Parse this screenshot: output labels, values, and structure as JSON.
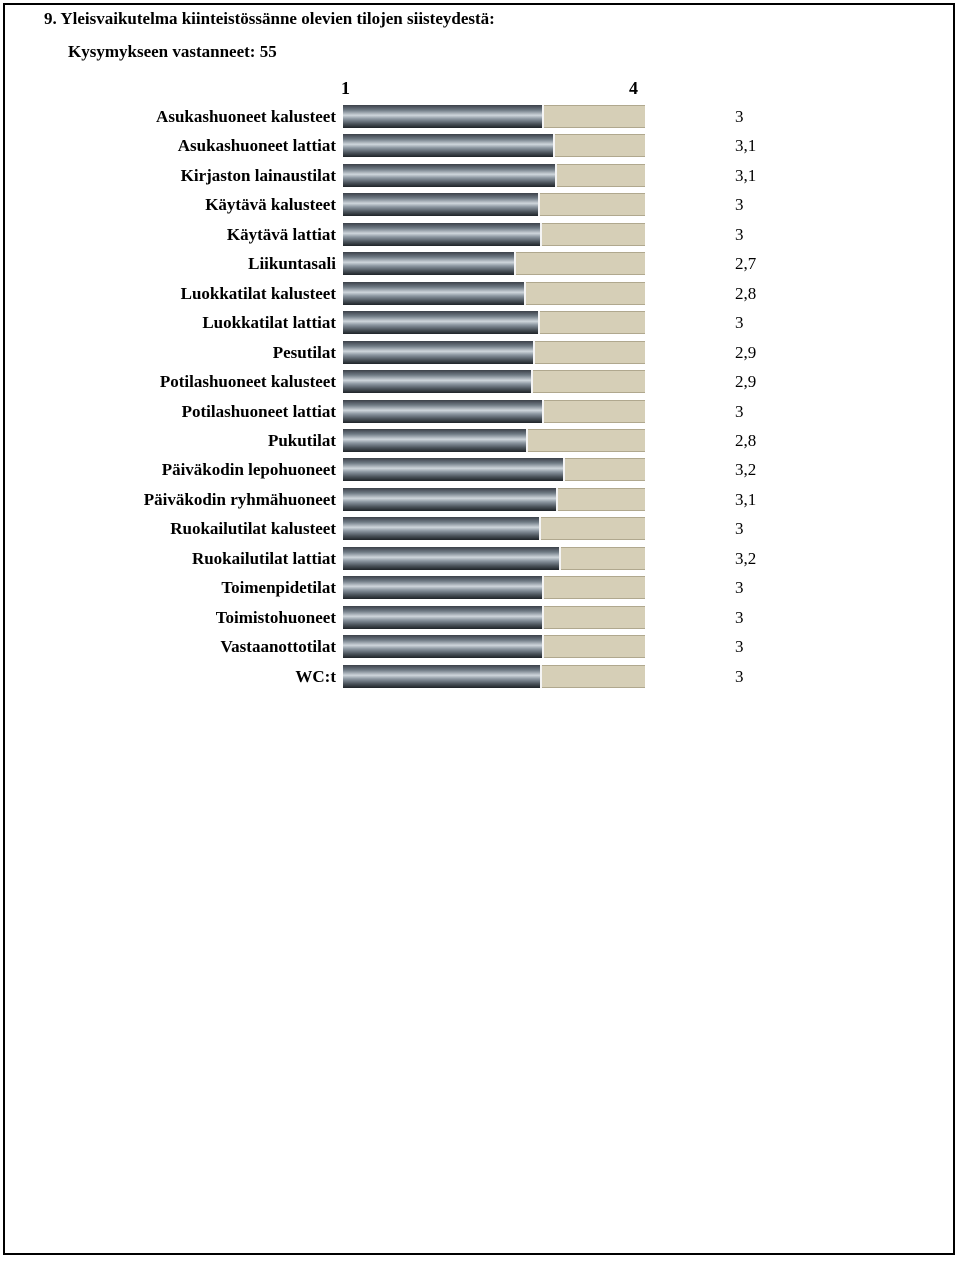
{
  "title": "9. Yleisvaikutelma kiinteistössänne olevien tilojen siisteydestä:",
  "subtitle": "Kysymykseen vastanneet: 55",
  "chart_data": {
    "type": "bar",
    "orientation": "horizontal",
    "title": "9. Yleisvaikutelma kiinteistössänne olevien tilojen siisteydestä:",
    "subtitle": "Kysymykseen vastanneet: 55",
    "xlim": [
      1,
      4
    ],
    "axis_labels": [
      "1",
      "4"
    ],
    "categories": [
      "Asukashuoneet kalusteet",
      "Asukashuoneet lattiat",
      "Kirjaston lainaustilat",
      "Käytävä kalusteet",
      "Käytävä lattiat",
      "Liikuntasali",
      "Luokkatilat kalusteet",
      "Luokkatilat lattiat",
      "Pesutilat",
      "Potilashuoneet kalusteet",
      "Potilashuoneet lattiat",
      "Pukutilat",
      "Päiväkodin lepohuoneet",
      "Päiväkodin ryhmähuoneet",
      "Ruokailutilat kalusteet",
      "Ruokailutilat lattiat",
      "Toimenpidetilat",
      "Toimistohuoneet",
      "Vastaanottotilat",
      "WC:t"
    ],
    "values": [
      3.0,
      3.11,
      3.13,
      2.96,
      2.98,
      2.72,
      2.82,
      2.96,
      2.91,
      2.89,
      3.0,
      2.84,
      3.21,
      3.14,
      2.97,
      3.17,
      3.0,
      3.0,
      3.0,
      2.98
    ],
    "value_labels": [
      "3",
      "3,1",
      "3,1",
      "3",
      "3",
      "2,7",
      "2,8",
      "3",
      "2,9",
      "2,9",
      "3",
      "2,8",
      "3,2",
      "3,1",
      "3",
      "3,2",
      "3",
      "3",
      "3",
      "3"
    ],
    "colors": {
      "bar": "#7d8791",
      "track": "#d6cfb7"
    },
    "grid": false,
    "legend": "none"
  }
}
